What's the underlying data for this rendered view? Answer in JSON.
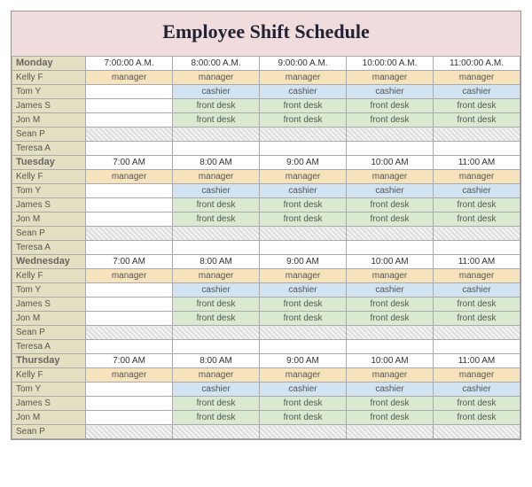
{
  "title": "Employee Shift Schedule",
  "colors": {
    "title_bg": "#f0dcdc",
    "name_col_bg": "#e5dfc1",
    "manager_bg": "#f7e3bb",
    "cashier_bg": "#d2e3f2",
    "frontdesk_bg": "#d9ead0",
    "hatch_a": "#ddd",
    "hatch_b": "#f4f4f4",
    "border": "#aaa"
  },
  "fonts": {
    "title_family": "Times New Roman",
    "title_size_pt": 18,
    "body_size_pt": 8
  },
  "days": [
    {
      "name": "Monday",
      "times": [
        "7:00:00 A.M.",
        "8:00:00 A.M.",
        "9:00:00 A.M.",
        "10:00:00 A.M.",
        "11:00:00 A.M."
      ],
      "rows": [
        {
          "emp": "Kelly F",
          "cells": [
            "manager",
            "manager",
            "manager",
            "manager",
            "manager"
          ],
          "style": "manager"
        },
        {
          "emp": "Tom Y",
          "cells": [
            "",
            "cashier",
            "cashier",
            "cashier",
            "cashier"
          ],
          "style": "cashier"
        },
        {
          "emp": "James S",
          "cells": [
            "",
            "front desk",
            "front desk",
            "front desk",
            "front desk"
          ],
          "style": "frontdesk"
        },
        {
          "emp": "Jon M",
          "cells": [
            "",
            "front desk",
            "front desk",
            "front desk",
            "front desk"
          ],
          "style": "frontdesk"
        },
        {
          "emp": "Sean P",
          "cells": [
            "",
            "",
            "",
            "",
            ""
          ],
          "style": "hatch"
        },
        {
          "emp": "Teresa A",
          "cells": [
            "",
            "",
            "",
            "",
            ""
          ],
          "style": "white"
        }
      ]
    },
    {
      "name": "Tuesday",
      "times": [
        "7:00 AM",
        "8:00 AM",
        "9:00 AM",
        "10:00 AM",
        "11:00 AM"
      ],
      "rows": [
        {
          "emp": "Kelly F",
          "cells": [
            "manager",
            "manager",
            "manager",
            "manager",
            "manager"
          ],
          "style": "manager"
        },
        {
          "emp": "Tom Y",
          "cells": [
            "",
            "cashier",
            "cashier",
            "cashier",
            "cashier"
          ],
          "style": "cashier"
        },
        {
          "emp": "James S",
          "cells": [
            "",
            "front desk",
            "front desk",
            "front desk",
            "front desk"
          ],
          "style": "frontdesk"
        },
        {
          "emp": "Jon M",
          "cells": [
            "",
            "front desk",
            "front desk",
            "front desk",
            "front desk"
          ],
          "style": "frontdesk"
        },
        {
          "emp": "Sean P",
          "cells": [
            "",
            "",
            "",
            "",
            ""
          ],
          "style": "hatch"
        },
        {
          "emp": "Teresa A",
          "cells": [
            "",
            "",
            "",
            "",
            ""
          ],
          "style": "white"
        }
      ]
    },
    {
      "name": "Wednesday",
      "times": [
        "7:00 AM",
        "8:00 AM",
        "9:00 AM",
        "10:00 AM",
        "11:00 AM"
      ],
      "rows": [
        {
          "emp": "Kelly F",
          "cells": [
            "manager",
            "manager",
            "manager",
            "manager",
            "manager"
          ],
          "style": "manager"
        },
        {
          "emp": "Tom Y",
          "cells": [
            "",
            "cashier",
            "cashier",
            "cashier",
            "cashier"
          ],
          "style": "cashier"
        },
        {
          "emp": "James S",
          "cells": [
            "",
            "front desk",
            "front desk",
            "front desk",
            "front desk"
          ],
          "style": "frontdesk"
        },
        {
          "emp": "Jon M",
          "cells": [
            "",
            "front desk",
            "front desk",
            "front desk",
            "front desk"
          ],
          "style": "frontdesk"
        },
        {
          "emp": "Sean P",
          "cells": [
            "",
            "",
            "",
            "",
            ""
          ],
          "style": "hatch"
        },
        {
          "emp": "Teresa A",
          "cells": [
            "",
            "",
            "",
            "",
            ""
          ],
          "style": "white"
        }
      ]
    },
    {
      "name": "Thursday",
      "times": [
        "7:00 AM",
        "8:00 AM",
        "9:00 AM",
        "10:00 AM",
        "11:00 AM"
      ],
      "rows": [
        {
          "emp": "Kelly F",
          "cells": [
            "manager",
            "manager",
            "manager",
            "manager",
            "manager"
          ],
          "style": "manager"
        },
        {
          "emp": "Tom Y",
          "cells": [
            "",
            "cashier",
            "cashier",
            "cashier",
            "cashier"
          ],
          "style": "cashier"
        },
        {
          "emp": "James S",
          "cells": [
            "",
            "front desk",
            "front desk",
            "front desk",
            "front desk"
          ],
          "style": "frontdesk"
        },
        {
          "emp": "Jon M",
          "cells": [
            "",
            "front desk",
            "front desk",
            "front desk",
            "front desk"
          ],
          "style": "frontdesk"
        },
        {
          "emp": "Sean P",
          "cells": [
            "",
            "",
            "",
            "",
            ""
          ],
          "style": "hatch"
        }
      ]
    }
  ]
}
